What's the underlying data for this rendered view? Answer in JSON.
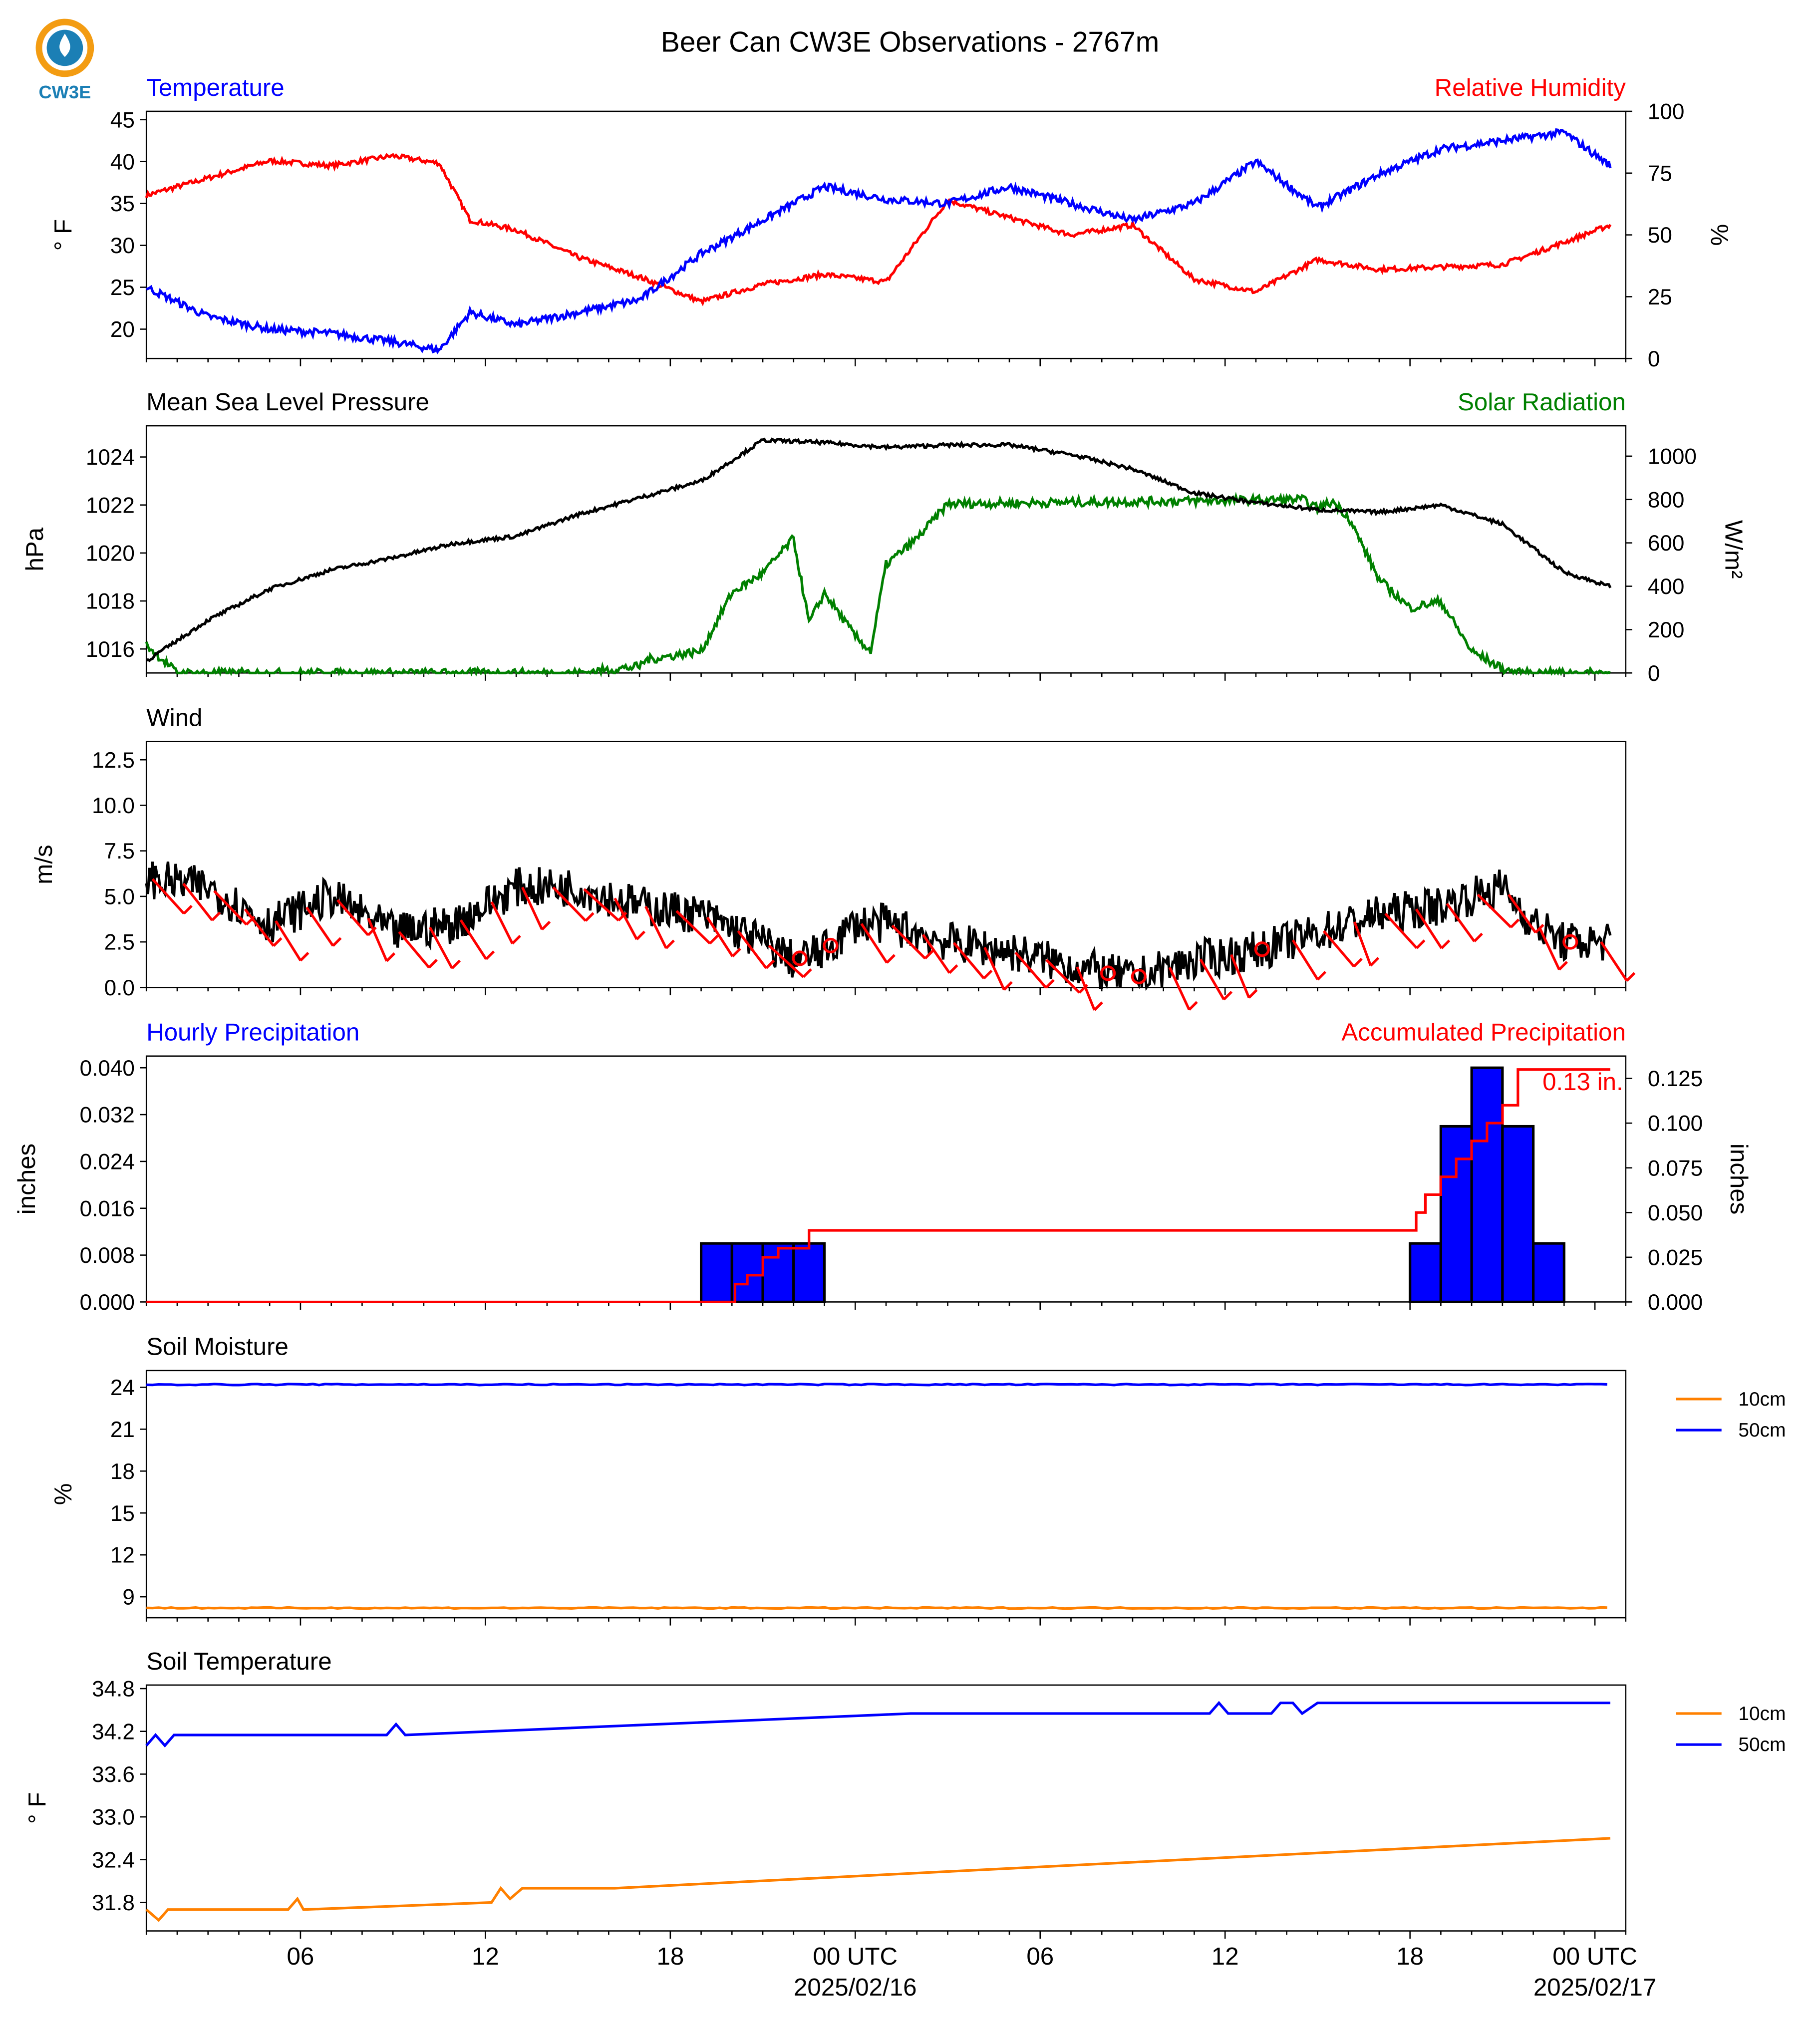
{
  "figure": {
    "title": "Beer Can CW3E Observations - 2767m",
    "logo_text": "CW3E",
    "x_ticks": [
      "06",
      "12",
      "18",
      "00 UTC",
      "06",
      "12",
      "18",
      "00 UTC"
    ],
    "x_dates": [
      "2025/02/16",
      "2025/02/17"
    ]
  },
  "colors": {
    "temperature": "#0000ff",
    "humidity": "#ff0000",
    "pressure": "#000000",
    "solar": "#008000",
    "wind": "#000000",
    "barbs": "#ff0000",
    "hourly_precip": "#0000ff",
    "accum_precip": "#ff0000",
    "soil_10cm": "#ff8000",
    "soil_50cm": "#0000ff",
    "logo": "#1b7fb5",
    "logo_accent": "#f39c12"
  },
  "chart_data": [
    {
      "type": "line",
      "left_title": "Temperature",
      "right_title": "Relative Humidity",
      "ylabel": "° F",
      "ylabel_right": "%",
      "ylim": [
        16.5,
        46
      ],
      "ylim_right": [
        0,
        100
      ],
      "yticks": [
        "20",
        "25",
        "30",
        "35",
        "40",
        "45"
      ],
      "yticks_right": [
        "0",
        "25",
        "50",
        "75",
        "100"
      ],
      "x_hours": [
        0,
        2,
        4,
        6,
        8,
        9.5,
        10.5,
        12,
        14,
        16,
        18,
        20,
        22,
        24,
        26,
        28,
        30,
        32,
        34,
        36,
        38,
        40,
        42,
        44,
        46,
        47.5
      ],
      "series": [
        {
          "name": "Temperature",
          "values": [
            25,
            21.5,
            20,
            19.5,
            18.5,
            17.5,
            22,
            20.5,
            22,
            23.5,
            29,
            33,
            37,
            35.5,
            35,
            37,
            35,
            33,
            35,
            40,
            34.5,
            38.5,
            41.5,
            42.5,
            43.5,
            39.5
          ]
        },
        {
          "name": "Relative Humidity",
          "values": [
            66,
            73,
            80,
            78,
            82,
            79,
            56,
            52,
            41,
            33,
            23,
            30,
            34,
            31,
            64,
            57,
            50,
            54,
            32,
            27,
            40,
            36,
            37,
            38,
            47,
            54
          ]
        }
      ]
    },
    {
      "type": "line",
      "left_title": "Mean Sea Level Pressure",
      "right_title": "Solar Radiation",
      "ylabel": "hPa",
      "ylabel_right": "W/m²",
      "ylim": [
        1015,
        1025.3
      ],
      "ylim_right": [
        0,
        1140
      ],
      "yticks": [
        "1016",
        "1018",
        "1020",
        "1022",
        "1024"
      ],
      "yticks_right": [
        "0",
        "200",
        "400",
        "600",
        "800",
        "1000"
      ],
      "pressure": {
        "x_hours": [
          0,
          2,
          4,
          6,
          8,
          10,
          12,
          14,
          16,
          18,
          20,
          22,
          24,
          26,
          28,
          30,
          32,
          34,
          36,
          38,
          40,
          42,
          44,
          46,
          47.5
        ],
        "values": [
          1015.5,
          1017.2,
          1018.5,
          1019.3,
          1019.8,
          1020.4,
          1020.7,
          1021.6,
          1022.3,
          1023.0,
          1024.7,
          1024.6,
          1024.4,
          1024.5,
          1024.5,
          1024.1,
          1023.5,
          1022.5,
          1022.1,
          1021.8,
          1021.7,
          1022.0,
          1021.2,
          1019.2,
          1018.6
        ]
      },
      "solar": {
        "x_hours": [
          0,
          1,
          14,
          16,
          16.2,
          17.5,
          18,
          19,
          20,
          21,
          21.5,
          22,
          23,
          23.5,
          24,
          25,
          26,
          37.5,
          38,
          38.5,
          39,
          40,
          41,
          42,
          43,
          44,
          44.5,
          45,
          45.5,
          46,
          47,
          47.5
        ],
        "values": [
          130,
          0,
          0,
          30,
          60,
          90,
          100,
          370,
          460,
          620,
          230,
          370,
          170,
          100,
          500,
          620,
          780,
          800,
          760,
          790,
          720,
          430,
          300,
          330,
          100,
          20,
          0,
          0,
          0,
          0,
          0,
          0
        ]
      }
    },
    {
      "type": "line",
      "left_title": "Wind",
      "ylabel": "m/s",
      "ylim": [
        0,
        13.5
      ],
      "yticks": [
        "0.0",
        "2.5",
        "5.0",
        "7.5",
        "10.0",
        "12.5"
      ],
      "x_hours": [
        0,
        2,
        4,
        6,
        8,
        10,
        12,
        14,
        16,
        18,
        20,
        21,
        22,
        23,
        24,
        25,
        26,
        28,
        30,
        32,
        34,
        36,
        38,
        40,
        42,
        44,
        45,
        46,
        47.5
      ],
      "speed": [
        6,
        5.5,
        3.5,
        5,
        3,
        3.5,
        5.5,
        5.5,
        4.5,
        4,
        2.5,
        1.5,
        2,
        3.5,
        3.5,
        3,
        2.5,
        2,
        1.2,
        0.5,
        1.5,
        2,
        3,
        4,
        4.5,
        5.5,
        3.5,
        2.5,
        2.5
      ]
    },
    {
      "type": "bar",
      "left_title": "Hourly Precipitation",
      "right_title": "Accumulated Precipitation",
      "ylabel": "inches",
      "ylabel_right": "inches",
      "ylim": [
        0,
        0.042
      ],
      "ylim_right": [
        0,
        0.1375
      ],
      "yticks": [
        "0.000",
        "0.008",
        "0.016",
        "0.024",
        "0.032",
        "0.040"
      ],
      "yticks_right": [
        "0.000",
        "0.025",
        "0.050",
        "0.075",
        "0.100",
        "0.125"
      ],
      "bar_start_hours": [
        18,
        19,
        20,
        21,
        41,
        42,
        43,
        44,
        45
      ],
      "bar_values": [
        0.01,
        0.01,
        0.01,
        0.01,
        0.01,
        0.03,
        0.04,
        0.03,
        0.01
      ],
      "accum_x_hours": [
        0,
        19,
        19.1,
        19.5,
        20,
        20.5,
        21,
        21.5,
        22,
        41,
        41.2,
        41.5,
        42,
        42.5,
        43,
        43.5,
        44,
        44.5,
        47.5
      ],
      "accum_values": [
        0,
        0,
        0.01,
        0.015,
        0.025,
        0.03,
        0.03,
        0.04,
        0.04,
        0.04,
        0.05,
        0.06,
        0.07,
        0.08,
        0.09,
        0.1,
        0.11,
        0.13,
        0.13
      ],
      "annotation": "0.13 in."
    },
    {
      "type": "line",
      "left_title": "Soil Moisture",
      "ylabel": "%",
      "ylim": [
        7.5,
        25.2
      ],
      "yticks": [
        "9",
        "12",
        "15",
        "18",
        "21",
        "24"
      ],
      "x_hours": [
        0,
        47.5
      ],
      "series": [
        {
          "name": "10cm",
          "values": [
            8.2,
            8.2
          ]
        },
        {
          "name": "50cm",
          "values": [
            24.2,
            24.2
          ]
        }
      ]
    },
    {
      "type": "line",
      "left_title": "Soil Temperature",
      "ylabel": "° F",
      "ylim": [
        31.4,
        34.85
      ],
      "yticks": [
        "31.8",
        "32.4",
        "33.0",
        "33.6",
        "34.2",
        "34.8"
      ],
      "series": [
        {
          "name": "10cm",
          "x_hours": [
            0,
            0.4,
            0.7,
            4.6,
            4.9,
            5.1,
            11.2,
            11.5,
            11.8,
            12.2,
            12.5,
            13.2,
            13.5,
            15.2,
            47.5
          ],
          "values": [
            31.7,
            31.55,
            31.7,
            31.7,
            31.85,
            31.7,
            31.8,
            32.0,
            31.85,
            32.0,
            32.0,
            32.0,
            32.0,
            32.0,
            32.7
          ]
        },
        {
          "name": "50cm",
          "x_hours": [
            0,
            0.3,
            0.6,
            0.9,
            7.8,
            8.1,
            8.4,
            24.8,
            25.1,
            25.4,
            34.5,
            34.8,
            35.1,
            36.5,
            36.8,
            37.2,
            37.5,
            38.0,
            47.5
          ],
          "values": [
            34.0,
            34.15,
            34.0,
            34.15,
            34.15,
            34.3,
            34.15,
            34.45,
            34.45,
            34.45,
            34.45,
            34.6,
            34.45,
            34.45,
            34.6,
            34.6,
            34.45,
            34.6,
            34.6
          ]
        }
      ]
    }
  ]
}
